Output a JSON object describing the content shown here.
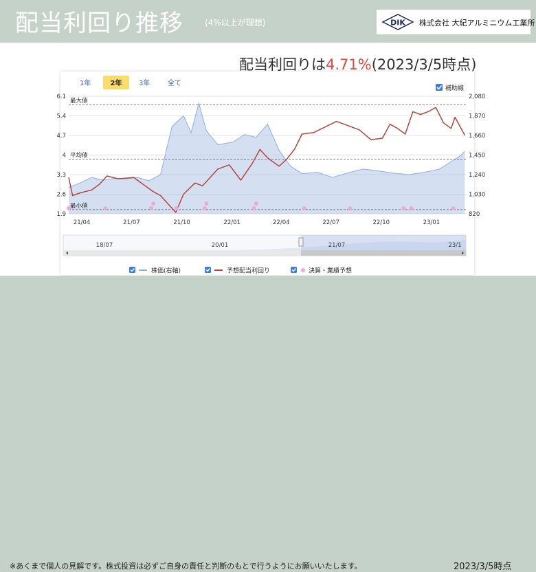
{
  "header": {
    "title": "配当利回り推移",
    "subtitle": "(4%以上が理想)",
    "logo_mark": "DIK",
    "company": "株式会社 大紀アルミニウム工業所"
  },
  "headline": {
    "prefix": "配当利回りは",
    "value": "4.71%",
    "suffix": "(2023/3/5時点)"
  },
  "controls": {
    "periods": [
      "1年",
      "2年",
      "3年",
      "全て"
    ],
    "active_period": "2年",
    "guides_label": "補助線"
  },
  "navigator": {
    "labels": [
      "18/07",
      "20/01",
      "21/07",
      "23/1"
    ]
  },
  "legend": {
    "items": [
      "株価(右軸)",
      "予想配当利回り",
      "決算・業績予想"
    ]
  },
  "footer": {
    "note": "※あくまで個人の見解です。株式投資は必ずご自身の責任と判断のもとで行うようにお願いいたします。",
    "date": "2023/3/5時点"
  },
  "colors": {
    "yield_line": "#b5443a",
    "price_area": "#9fb8e2",
    "price_line": "#8caee0",
    "event_marker": "#f0a8d8",
    "accent": "#e5483a",
    "background": "#c5d2c9"
  },
  "chart_data": {
    "type": "line",
    "x_ticks": [
      "21/04",
      "21/07",
      "21/10",
      "22/01",
      "22/04",
      "22/07",
      "22/10",
      "23/01"
    ],
    "y_left": {
      "ticks": [
        1.9,
        2.6,
        3.3,
        4,
        4.7,
        5.4,
        6.1
      ],
      "range": [
        1.9,
        6.1
      ]
    },
    "y_right": {
      "ticks": [
        820,
        1030,
        1240,
        1450,
        1660,
        1870,
        2080
      ],
      "range": [
        820,
        2080
      ]
    },
    "reference_lines": [
      {
        "label": "最大値",
        "value": 5.8
      },
      {
        "label": "平均値",
        "value": 3.85
      },
      {
        "label": "最小値",
        "value": 2.05
      }
    ],
    "series": [
      {
        "name": "株価(右軸)",
        "axis": "right",
        "points": [
          [
            "21/03/08",
            1105
          ],
          [
            "21/03/29",
            1150
          ],
          [
            "21/04/19",
            1210
          ],
          [
            "21/05/10",
            1180
          ],
          [
            "21/05/31",
            1200
          ],
          [
            "21/06/21",
            1195
          ],
          [
            "21/07/12",
            1210
          ],
          [
            "21/08/02",
            1175
          ],
          [
            "21/08/23",
            1240
          ],
          [
            "21/09/13",
            1755
          ],
          [
            "21/10/04",
            1870
          ],
          [
            "21/10/18",
            1690
          ],
          [
            "21/11/01",
            2005
          ],
          [
            "21/11/15",
            1710
          ],
          [
            "21/12/06",
            1560
          ],
          [
            "22/01/03",
            1590
          ],
          [
            "22/01/24",
            1670
          ],
          [
            "22/02/14",
            1640
          ],
          [
            "22/03/07",
            1780
          ],
          [
            "22/03/28",
            1500
          ],
          [
            "22/04/18",
            1330
          ],
          [
            "22/05/09",
            1250
          ],
          [
            "22/06/06",
            1265
          ],
          [
            "22/07/04",
            1210
          ],
          [
            "22/08/01",
            1260
          ],
          [
            "22/08/29",
            1300
          ],
          [
            "22/09/26",
            1280
          ],
          [
            "22/10/24",
            1255
          ],
          [
            "22/11/21",
            1240
          ],
          [
            "22/12/19",
            1265
          ],
          [
            "23/01/16",
            1300
          ],
          [
            "23/02/06",
            1380
          ],
          [
            "23/02/20",
            1430
          ],
          [
            "23/03/03",
            1490
          ]
        ]
      },
      {
        "name": "予想配当利回り",
        "axis": "left",
        "points": [
          [
            "21/03/08",
            3.2
          ],
          [
            "21/03/15",
            2.55
          ],
          [
            "21/03/29",
            2.65
          ],
          [
            "21/04/19",
            2.75
          ],
          [
            "21/05/03",
            2.95
          ],
          [
            "21/05/17",
            3.25
          ],
          [
            "21/06/07",
            3.15
          ],
          [
            "21/07/05",
            3.2
          ],
          [
            "21/07/26",
            2.9
          ],
          [
            "21/08/09",
            2.7
          ],
          [
            "21/08/23",
            2.55
          ],
          [
            "21/09/06",
            2.25
          ],
          [
            "21/09/20",
            1.95
          ],
          [
            "21/10/04",
            2.6
          ],
          [
            "21/10/25",
            3.0
          ],
          [
            "21/11/08",
            2.9
          ],
          [
            "21/11/22",
            3.2
          ],
          [
            "21/12/06",
            3.5
          ],
          [
            "21/12/27",
            3.65
          ],
          [
            "22/01/17",
            3.1
          ],
          [
            "22/02/07",
            3.7
          ],
          [
            "22/02/21",
            4.2
          ],
          [
            "22/03/07",
            3.9
          ],
          [
            "22/03/28",
            3.6
          ],
          [
            "22/04/11",
            3.85
          ],
          [
            "22/04/25",
            4.2
          ],
          [
            "22/05/09",
            4.75
          ],
          [
            "22/05/30",
            4.8
          ],
          [
            "22/06/20",
            5.0
          ],
          [
            "22/07/11",
            5.2
          ],
          [
            "22/08/01",
            5.05
          ],
          [
            "22/08/22",
            4.9
          ],
          [
            "22/09/12",
            4.55
          ],
          [
            "22/10/03",
            4.6
          ],
          [
            "22/10/17",
            5.1
          ],
          [
            "22/10/31",
            4.95
          ],
          [
            "22/11/14",
            4.75
          ],
          [
            "22/11/28",
            5.55
          ],
          [
            "22/12/12",
            5.45
          ],
          [
            "22/12/26",
            5.55
          ],
          [
            "23/01/09",
            5.7
          ],
          [
            "23/01/23",
            5.15
          ],
          [
            "23/02/06",
            4.95
          ],
          [
            "23/02/13",
            5.35
          ],
          [
            "23/02/27",
            4.85
          ],
          [
            "23/03/03",
            4.71
          ]
        ]
      }
    ],
    "events": [
      "21/03/08",
      "21/05/14",
      "21/08/06",
      "21/08/10",
      "21/09/21",
      "21/11/12",
      "21/11/15",
      "22/02/10",
      "22/02/14",
      "22/05/13",
      "22/08/05",
      "22/11/11",
      "22/11/25",
      "23/02/10"
    ]
  }
}
